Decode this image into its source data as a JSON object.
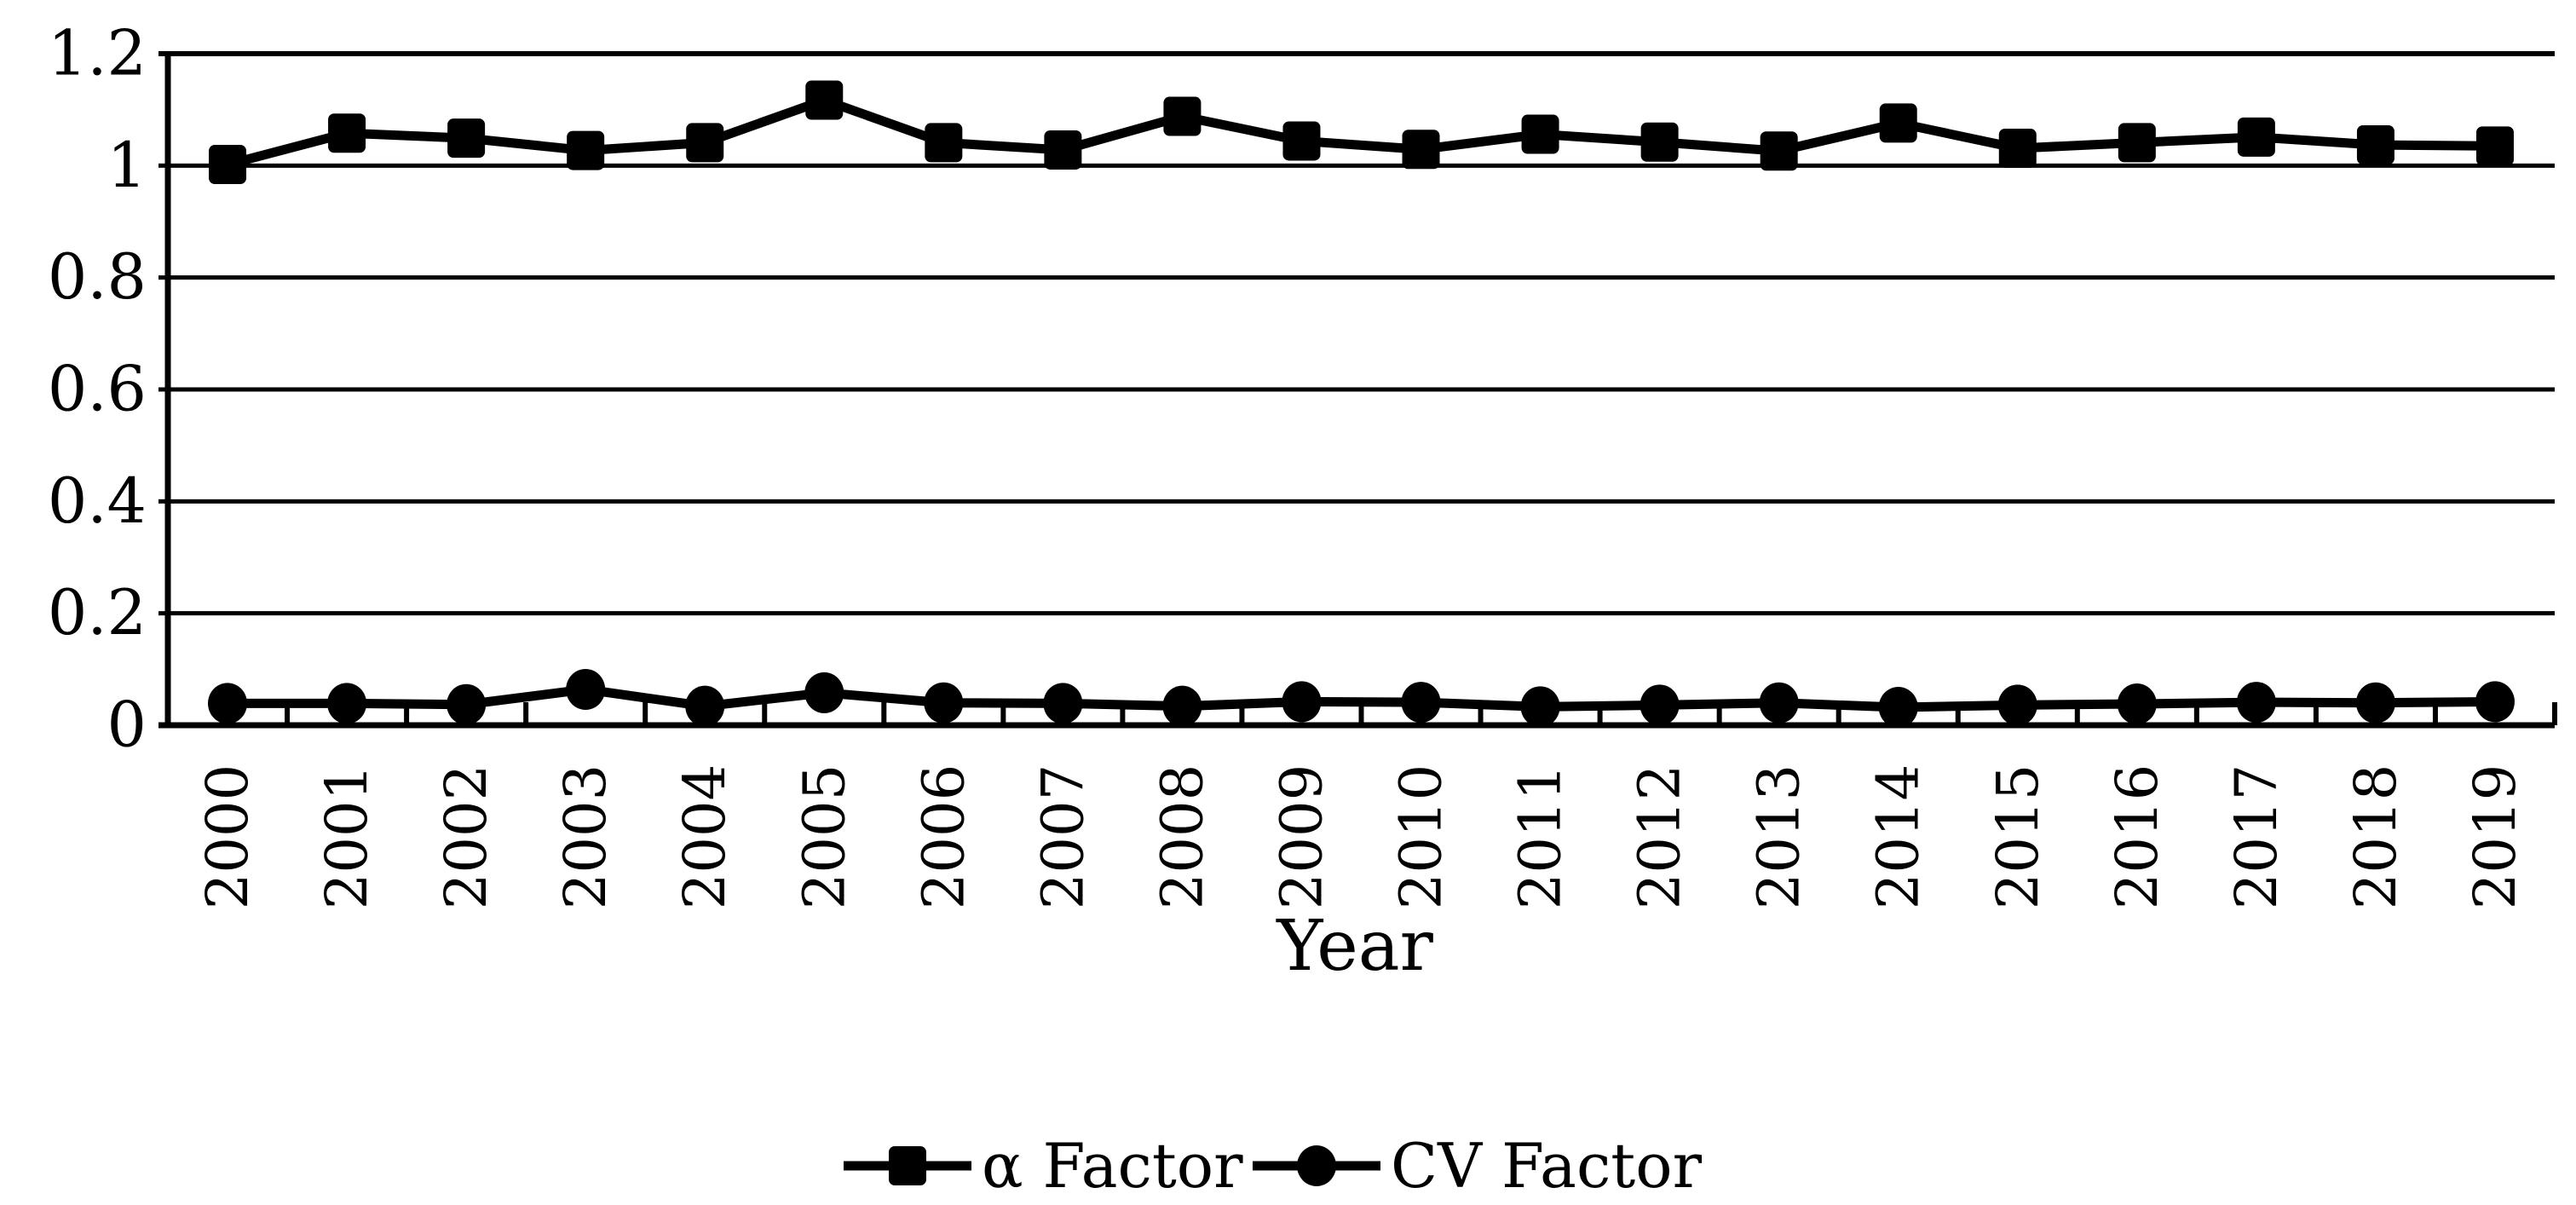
{
  "chart_data": {
    "type": "line",
    "title": "",
    "xlabel": "Year",
    "ylabel": "",
    "ylim": [
      0,
      1.2
    ],
    "grid": "horizontal",
    "legend_position": "bottom",
    "yticks": [
      0,
      0.2,
      0.4,
      0.6,
      0.8,
      1,
      1.2
    ],
    "ytick_labels": [
      "0",
      "0.2",
      "0.4",
      "0.6",
      "0.8",
      "1",
      "1.2"
    ],
    "categories": [
      "2000",
      "2001",
      "2002",
      "2003",
      "2004",
      "2005",
      "2006",
      "2007",
      "2008",
      "2009",
      "2010",
      "2011",
      "2012",
      "2013",
      "2014",
      "2015",
      "2016",
      "2017",
      "2018",
      "2019"
    ],
    "series": [
      {
        "name": "α Factor",
        "marker": "square",
        "color": "#000000",
        "values": [
          1.002,
          1.058,
          1.049,
          1.027,
          1.041,
          1.117,
          1.041,
          1.028,
          1.088,
          1.044,
          1.029,
          1.056,
          1.042,
          1.026,
          1.076,
          1.031,
          1.041,
          1.051,
          1.037,
          1.035
        ]
      },
      {
        "name": "CV Factor",
        "marker": "circle",
        "color": "#000000",
        "values": [
          0.039,
          0.039,
          0.037,
          0.064,
          0.034,
          0.058,
          0.04,
          0.039,
          0.034,
          0.042,
          0.041,
          0.033,
          0.036,
          0.04,
          0.032,
          0.036,
          0.038,
          0.041,
          0.04,
          0.042
        ]
      }
    ]
  },
  "colors": {
    "foreground": "#000000",
    "background": "#ffffff"
  }
}
